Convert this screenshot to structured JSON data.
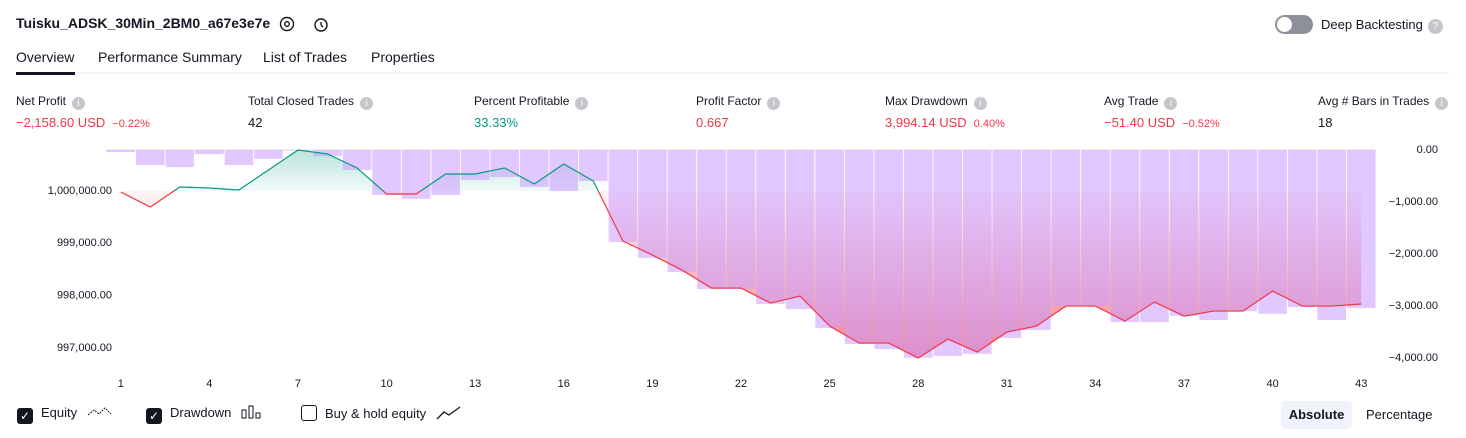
{
  "header": {
    "title": "Tuisku_ADSK_30Min_2BM0_a67e3e7e",
    "deep_backtesting": "Deep Backtesting"
  },
  "tabs": [
    "Overview",
    "Performance Summary",
    "List of Trades",
    "Properties"
  ],
  "metrics": [
    {
      "label": "Net Profit",
      "value": "−2,158.60 USD",
      "change": "−0.22%",
      "color": "#f23645"
    },
    {
      "label": "Total Closed Trades",
      "value": 42
    },
    {
      "label": "Percent Profitable",
      "value": "33.33%",
      "color": "#089981"
    },
    {
      "label": "Profit Factor",
      "value": 0.667,
      "color": "#f23645"
    },
    {
      "label": "Max Drawdown",
      "value": "3,994.14 USD",
      "change": "0.40%",
      "color": "#f23645"
    },
    {
      "label": "Avg Trade",
      "value": "−51.40 USD",
      "change": "−0.52%",
      "color": "#f23645"
    },
    {
      "label": "Avg # Bars in Trades",
      "value": 18
    }
  ],
  "chart_data": {
    "type": "line",
    "x": [
      1,
      2,
      3,
      4,
      5,
      6,
      7,
      8,
      9,
      10,
      11,
      12,
      13,
      14,
      15,
      16,
      17,
      18,
      19,
      20,
      21,
      22,
      23,
      24,
      25,
      26,
      27,
      28,
      29,
      30,
      31,
      32,
      33,
      34,
      35,
      36,
      37,
      38,
      39,
      40,
      41,
      42,
      43
    ],
    "xlim": [
      0.5,
      43.5
    ],
    "xticks": [
      1,
      4,
      7,
      10,
      13,
      16,
      19,
      22,
      25,
      28,
      31,
      34,
      37,
      40,
      43
    ],
    "ylim": [
      996675,
      1000879
    ],
    "yticks": [
      {
        "value": 1000000,
        "label": "1,000,000.00"
      },
      {
        "value": 999000,
        "label": "999,000.00"
      },
      {
        "value": 998000,
        "label": "998,000.00"
      },
      {
        "value": 997000,
        "label": "997,000.00"
      }
    ],
    "y2lim": [
      -4135,
      96
    ],
    "y2ticks": [
      {
        "value": 0,
        "label": "0.00"
      },
      {
        "value": -1000,
        "label": "−1,000.00"
      },
      {
        "value": -2000,
        "label": "−2,000.00"
      },
      {
        "value": -3000,
        "label": "−3,000.00"
      },
      {
        "value": -4000,
        "label": "−4,000.00"
      }
    ],
    "series": [
      {
        "name": "Equity",
        "type": "line",
        "color": "#089981",
        "color_negative": "#f23645",
        "values": [
          999981,
          999694,
          1000076,
          1000057,
          1000019,
          1000402,
          1000784,
          1000708,
          1000440,
          999943,
          999943,
          1000325,
          1000325,
          1000440,
          1000134,
          1000516,
          1000191,
          999044,
          998776,
          998489,
          998145,
          998145,
          997859,
          997992,
          997419,
          997094,
          997094,
          996807,
          997170,
          996922,
          997304,
          997419,
          997801,
          997801,
          997514,
          997878,
          997610,
          997706,
          997706,
          998088,
          997801,
          997801,
          997841
        ]
      },
      {
        "name": "Drawdown",
        "type": "bar",
        "axis": "y2",
        "color": "#c99bff",
        "values": [
          -40,
          -290,
          -330,
          -80,
          -290,
          -170,
          0,
          -115,
          -385,
          -865,
          -940,
          -865,
          -575,
          -520,
          -710,
          -790,
          -595,
          -1770,
          -2075,
          -2345,
          -2675,
          -2675,
          -2960,
          -3060,
          -3425,
          -3730,
          -3830,
          -3994,
          -3960,
          -3920,
          -3615,
          -3460,
          -3000,
          -3000,
          -3310,
          -3310,
          -3190,
          -3270,
          -3100,
          -3150,
          -3020,
          -3270,
          -3040
        ]
      }
    ]
  },
  "controls": {
    "buy_hold": "Buy & hold equity",
    "modes": [
      "Absolute",
      "Percentage"
    ]
  }
}
